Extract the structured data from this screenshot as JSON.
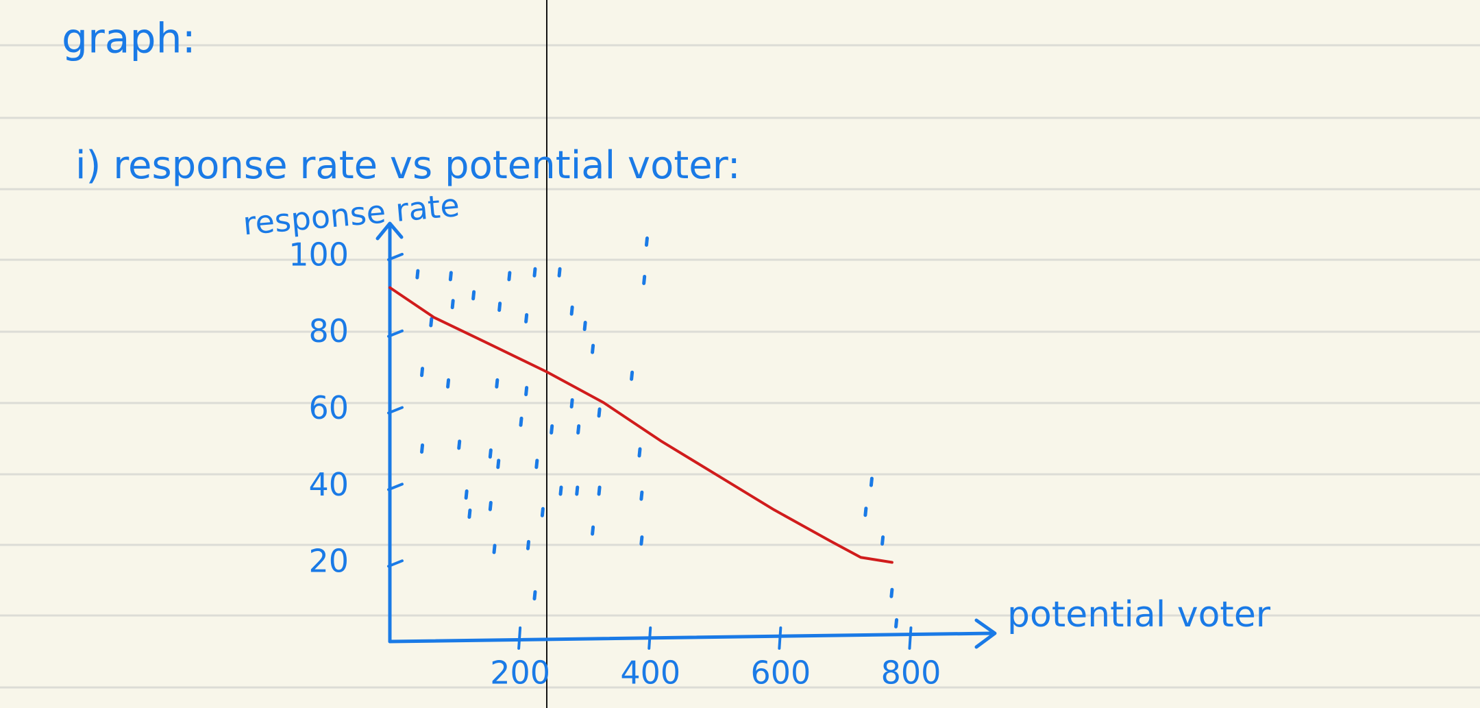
{
  "chart_data": {
    "type": "scatter",
    "heading": "graph:",
    "title": "i) response rate vs potential voter:",
    "ylabel": "response rate",
    "xlabel": "potential voter",
    "xlim": [
      0,
      850
    ],
    "ylim": [
      0,
      110
    ],
    "xticks": [
      200,
      400,
      600,
      800
    ],
    "yticks": [
      20,
      40,
      60,
      80,
      100
    ],
    "series": [
      {
        "type": "scatter",
        "color": "#1a7ae6",
        "x": [
          43,
          94,
          184,
          223,
          261,
          395,
          391,
          129,
          97,
          169,
          210,
          280,
          300,
          312,
          64,
          50,
          90,
          165,
          210,
          280,
          322,
          372,
          50,
          107,
          155,
          202,
          249,
          290,
          226,
          167,
          263,
          288,
          322,
          384,
          387,
          118,
          155,
          123,
          235,
          312,
          161,
          213,
          387,
          223,
          740,
          731,
          757,
          771,
          778
        ],
        "values": [
          95.5,
          95,
          95,
          96,
          96,
          104,
          94,
          90,
          87.7,
          87,
          84,
          86,
          82,
          76,
          83,
          70,
          67,
          67,
          65,
          61.8,
          59.4,
          69,
          50,
          51,
          48.7,
          57,
          55,
          55,
          46,
          46,
          39,
          39,
          39,
          49,
          37.7,
          38,
          35,
          33,
          33.4,
          28.6,
          23.8,
          24.8,
          26,
          11.7,
          41.3,
          33.5,
          26,
          12.3,
          4.4
        ]
      },
      {
        "type": "line",
        "color": "#d01c1c",
        "x": [
          0,
          68,
          144,
          241,
          328,
          416,
          503,
          590,
          677,
          723,
          771
        ],
        "values": [
          92,
          84.2,
          78,
          70,
          62,
          52,
          43,
          34,
          25.8,
          21.6,
          20.3
        ]
      }
    ]
  }
}
